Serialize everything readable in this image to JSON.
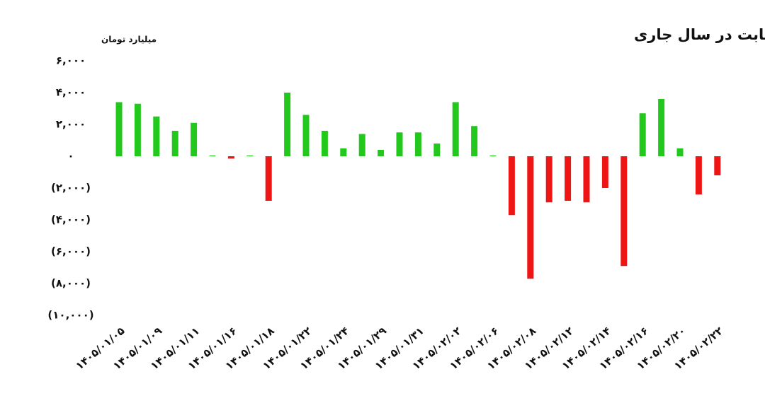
{
  "chart_data": {
    "type": "bar",
    "title": "ورود و خروج روزانه پول حقیقی‌ها به صندوق‌های درآمد ثابت در سال جاری",
    "y_label": "میلیارد تومان",
    "categories": [
      "۱۴۰۵/۰۱/۰۵",
      null,
      "۱۴۰۵/۰۱/۰۹",
      null,
      "۱۴۰۵/۰۱/۱۱",
      null,
      "۱۴۰۵/۰۱/۱۶",
      null,
      "۱۴۰۵/۰۱/۱۸",
      null,
      "۱۴۰۵/۰۱/۲۲",
      null,
      "۱۴۰۵/۰۱/۲۴",
      null,
      "۱۴۰۵/۰۱/۲۹",
      null,
      "۱۴۰۵/۰۱/۳۱",
      null,
      "۱۴۰۵/۰۲/۰۲",
      null,
      "۱۴۰۵/۰۲/۰۶",
      null,
      "۱۴۰۵/۰۲/۰۸",
      null,
      "۱۴۰۵/۰۲/۱۲",
      null,
      "۱۴۰۵/۰۲/۱۴",
      null,
      "۱۴۰۵/۰۲/۱۶",
      null,
      "۱۴۰۵/۰۲/۲۰",
      null,
      "۱۴۰۵/۰۲/۲۲"
    ],
    "values": [
      3400,
      3300,
      2500,
      1600,
      2100,
      50,
      -150,
      50,
      -2800,
      4000,
      2600,
      1600,
      500,
      1400,
      400,
      1500,
      1500,
      800,
      3400,
      1900,
      50,
      -3700,
      -7700,
      -2900,
      -2800,
      -2900,
      -2000,
      -6900,
      2700,
      3600,
      500,
      -2400,
      -1200
    ],
    "positive_color": "#22c91c",
    "negative_color": "#ee1515",
    "ylim": [
      -10000,
      6000
    ],
    "yticks": [
      {
        "value": 6000,
        "label": "۶,۰۰۰"
      },
      {
        "value": 4000,
        "label": "۴,۰۰۰"
      },
      {
        "value": 2000,
        "label": "۲,۰۰۰"
      },
      {
        "value": 0,
        "label": "۰"
      },
      {
        "value": -2000,
        "label": "(۲,۰۰۰)"
      },
      {
        "value": -4000,
        "label": "(۴,۰۰۰)"
      },
      {
        "value": -6000,
        "label": "(۶,۰۰۰)"
      },
      {
        "value": -8000,
        "label": "(۸,۰۰۰)"
      },
      {
        "value": -10000,
        "label": "(۱۰,۰۰۰)"
      }
    ],
    "grid": false
  }
}
